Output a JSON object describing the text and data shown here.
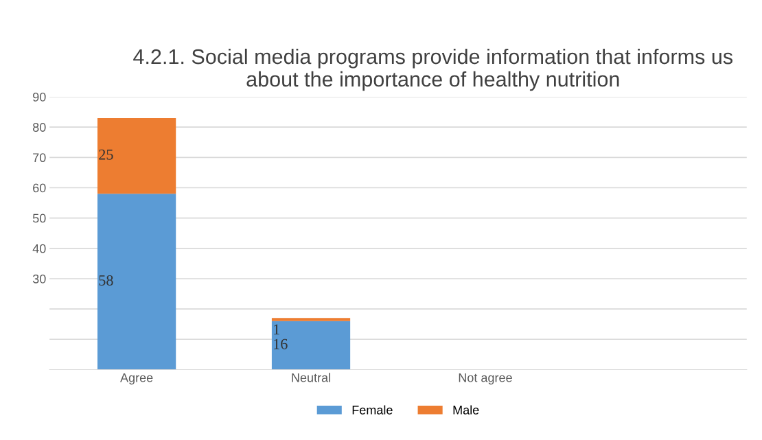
{
  "chart_data": {
    "type": "bar",
    "stacked": true,
    "title": "4.2.1. Social media programs provide information that informs us about the importance of healthy nutrition",
    "categories": [
      "Agree",
      "Neutral",
      "Not agree"
    ],
    "series": [
      {
        "name": "Female",
        "color": "#5b9bd5",
        "values": [
          58,
          16,
          null
        ]
      },
      {
        "name": "Male",
        "color": "#ed7d31",
        "values": [
          25,
          1,
          null
        ]
      }
    ],
    "ylim": [
      0,
      90
    ],
    "yticks": [
      {
        "value": 10,
        "label": null
      },
      {
        "value": 20,
        "label": null
      },
      30,
      40,
      50,
      60,
      70,
      80,
      90
    ],
    "grid": "y",
    "legend": "bottom",
    "data_labels": true
  }
}
